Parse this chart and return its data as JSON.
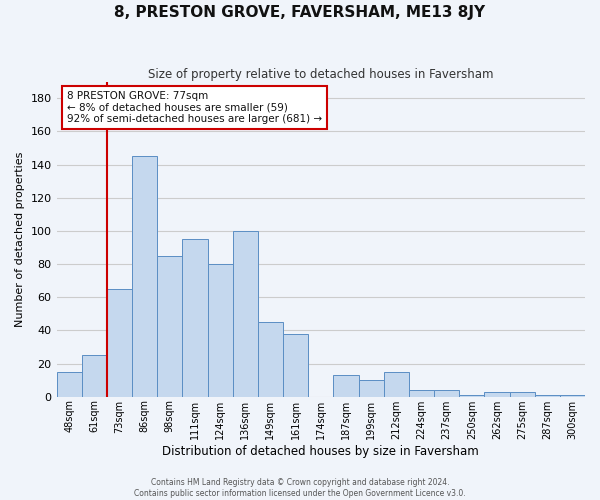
{
  "title": "8, PRESTON GROVE, FAVERSHAM, ME13 8JY",
  "subtitle": "Size of property relative to detached houses in Faversham",
  "xlabel": "Distribution of detached houses by size in Faversham",
  "ylabel": "Number of detached properties",
  "bin_labels": [
    "48sqm",
    "61sqm",
    "73sqm",
    "86sqm",
    "98sqm",
    "111sqm",
    "124sqm",
    "136sqm",
    "149sqm",
    "161sqm",
    "174sqm",
    "187sqm",
    "199sqm",
    "212sqm",
    "224sqm",
    "237sqm",
    "250sqm",
    "262sqm",
    "275sqm",
    "287sqm",
    "300sqm"
  ],
  "bar_heights": [
    15,
    25,
    65,
    145,
    85,
    95,
    80,
    100,
    45,
    38,
    0,
    13,
    10,
    15,
    4,
    4,
    1,
    3,
    3,
    1,
    1
  ],
  "bar_color": "#c5d8ee",
  "bar_edge_color": "#5b8ec4",
  "ylim": [
    0,
    190
  ],
  "yticks": [
    0,
    20,
    40,
    60,
    80,
    100,
    120,
    140,
    160,
    180
  ],
  "vline_color": "#cc0000",
  "vline_x_index": 2,
  "annotation_title": "8 PRESTON GROVE: 77sqm",
  "annotation_line1": "← 8% of detached houses are smaller (59)",
  "annotation_line2": "92% of semi-detached houses are larger (681) →",
  "annotation_box_color": "#cc0000",
  "footer1": "Contains HM Land Registry data © Crown copyright and database right 2024.",
  "footer2": "Contains public sector information licensed under the Open Government Licence v3.0.",
  "grid_color": "#cccccc",
  "background_color": "#f0f4fa"
}
